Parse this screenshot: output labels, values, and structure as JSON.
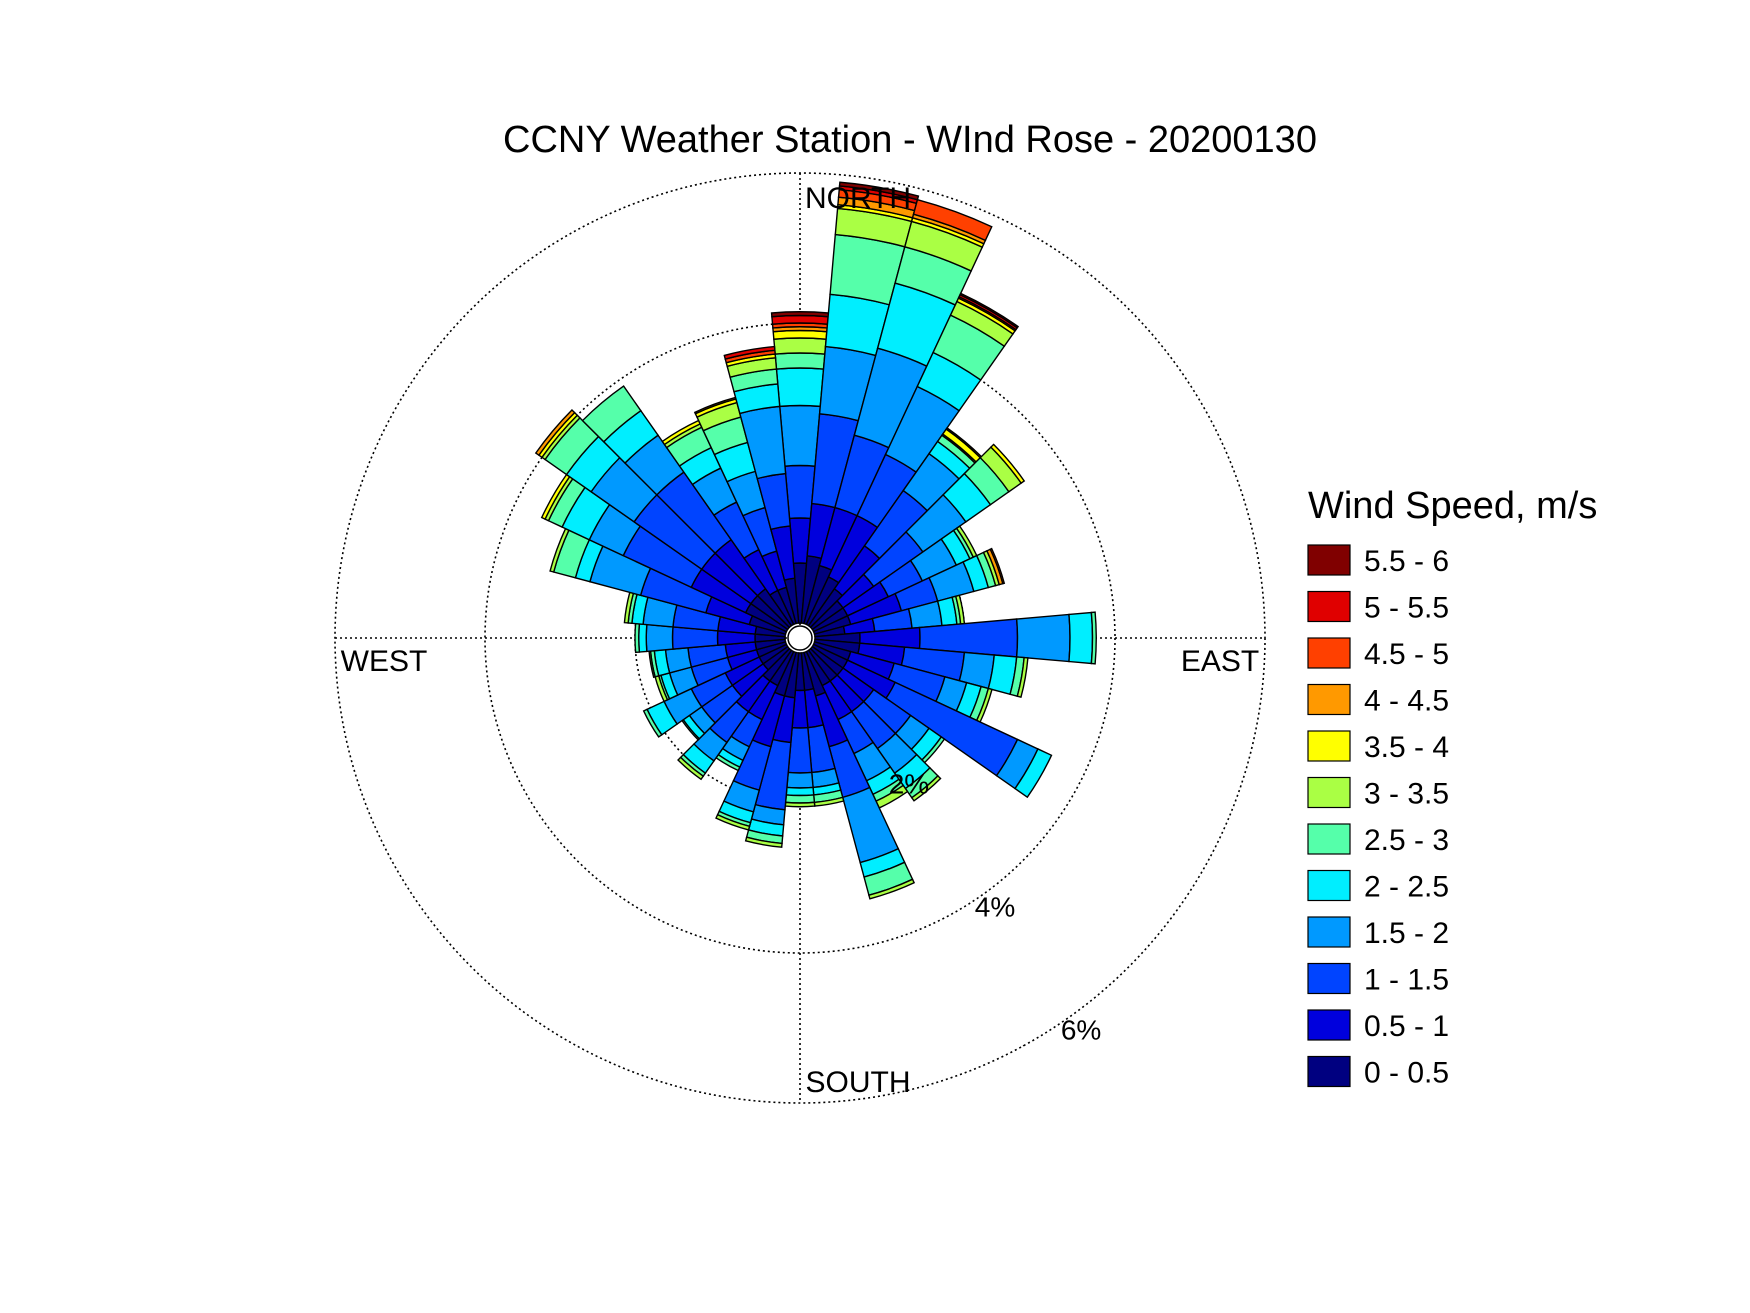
{
  "chart_data": {
    "type": "wind-rose",
    "title": "CCNY Weather Station - WInd Rose - 20200130",
    "direction_labels": {
      "north": "NORTH",
      "east": "EAST",
      "south": "SOUTH",
      "west": "WEST"
    },
    "radial_ticks": [
      {
        "value": 2,
        "label": "2%"
      },
      {
        "value": 4,
        "label": "4%"
      },
      {
        "value": 6,
        "label": "6%"
      }
    ],
    "r_max": 6,
    "grid": true,
    "sector_count": 36,
    "sector_width_deg": 10,
    "legend": {
      "title": "Wind Speed, m/s",
      "placement": "right",
      "bins": [
        {
          "label": "5.5 - 6",
          "color": "#800000"
        },
        {
          "label": "5 - 5.5",
          "color": "#e00000"
        },
        {
          "label": "4.5 - 5",
          "color": "#ff4000"
        },
        {
          "label": "4 - 4.5",
          "color": "#ff9900"
        },
        {
          "label": "3.5 - 4",
          "color": "#ffff00"
        },
        {
          "label": "3 - 3.5",
          "color": "#aaff44"
        },
        {
          "label": "2.5 - 3",
          "color": "#55ffaa"
        },
        {
          "label": "2 - 2.5",
          "color": "#00eeff"
        },
        {
          "label": "1.5 - 2",
          "color": "#0099ff"
        },
        {
          "label": "1 - 1.5",
          "color": "#0044ff"
        },
        {
          "label": "0.5 - 1",
          "color": "#0000dd"
        },
        {
          "label": "0 - 0.5",
          "color": "#000080"
        }
      ]
    },
    "sectors": [
      {
        "direction_deg": 0,
        "cumulative_pct": [
          0.8,
          1.4,
          2.1,
          2.9,
          3.4,
          3.6,
          3.8,
          3.9,
          3.95,
          4.0,
          4.1,
          4.15
        ]
      },
      {
        "direction_deg": 10,
        "cumulative_pct": [
          0.9,
          1.6,
          2.8,
          3.7,
          4.4,
          5.2,
          5.55,
          5.6,
          5.7,
          5.8,
          5.85,
          5.9
        ]
      },
      {
        "direction_deg": 20,
        "cumulative_pct": [
          0.8,
          1.6,
          2.6,
          3.8,
          4.7,
          5.2,
          5.55,
          5.6,
          5.65,
          5.85,
          5.85,
          5.85
        ]
      },
      {
        "direction_deg": 30,
        "cumulative_pct": [
          0.7,
          1.6,
          2.5,
          3.5,
          4.0,
          4.55,
          4.75,
          4.8,
          4.8,
          4.82,
          4.85,
          4.87
        ]
      },
      {
        "direction_deg": 40,
        "cumulative_pct": [
          0.6,
          1.3,
          2.2,
          2.8,
          3.0,
          3.1,
          3.12,
          3.2,
          3.22,
          3.22,
          3.22,
          3.22
        ]
      },
      {
        "direction_deg": 50,
        "cumulative_pct": [
          0.5,
          1.0,
          1.8,
          2.5,
          2.9,
          3.2,
          3.4,
          3.45,
          3.45,
          3.45,
          3.45,
          3.45
        ]
      },
      {
        "direction_deg": 60,
        "cumulative_pct": [
          0.5,
          1.1,
          1.6,
          2.1,
          2.3,
          2.35,
          2.4,
          2.4,
          2.4,
          2.4,
          2.4,
          2.4
        ]
      },
      {
        "direction_deg": 70,
        "cumulative_pct": [
          0.5,
          1.2,
          1.7,
          2.2,
          2.4,
          2.5,
          2.55,
          2.55,
          2.6,
          2.62,
          2.62,
          2.62
        ]
      },
      {
        "direction_deg": 80,
        "cumulative_pct": [
          0.4,
          0.8,
          1.3,
          1.7,
          1.9,
          1.95,
          2.0,
          2.0,
          2.0,
          2.0,
          2.0,
          2.0
        ]
      },
      {
        "direction_deg": 90,
        "cumulative_pct": [
          0.6,
          1.4,
          2.7,
          3.4,
          3.7,
          3.75,
          3.75,
          3.75,
          3.75,
          3.75,
          3.75,
          3.75
        ]
      },
      {
        "direction_deg": 100,
        "cumulative_pct": [
          0.6,
          1.2,
          2.0,
          2.4,
          2.7,
          2.8,
          2.85,
          2.85,
          2.85,
          2.85,
          2.85,
          2.85
        ]
      },
      {
        "direction_deg": 110,
        "cumulative_pct": [
          0.5,
          1.1,
          1.8,
          2.1,
          2.3,
          2.4,
          2.45,
          2.45,
          2.45,
          2.45,
          2.45,
          2.45
        ]
      },
      {
        "direction_deg": 120,
        "cumulative_pct": [
          0.5,
          1.2,
          3.0,
          3.3,
          3.5,
          3.5,
          3.5,
          3.5,
          3.5,
          3.5,
          3.5,
          3.5
        ]
      },
      {
        "direction_deg": 130,
        "cumulative_pct": [
          0.5,
          1.0,
          1.6,
          1.9,
          2.1,
          2.15,
          2.15,
          2.15,
          2.15,
          2.15,
          2.15,
          2.15
        ]
      },
      {
        "direction_deg": 140,
        "cumulative_pct": [
          0.5,
          1.0,
          1.6,
          2.0,
          2.25,
          2.4,
          2.45,
          2.45,
          2.45,
          2.45,
          2.45,
          2.45
        ]
      },
      {
        "direction_deg": 150,
        "cumulative_pct": [
          0.5,
          1.0,
          1.5,
          1.9,
          2.1,
          2.2,
          2.3,
          2.3,
          2.3,
          2.3,
          2.3,
          2.3
        ]
      },
      {
        "direction_deg": 160,
        "cumulative_pct": [
          0.6,
          1.3,
          2.0,
          2.9,
          3.1,
          3.35,
          3.4,
          3.4,
          3.4,
          3.4,
          3.4,
          3.4
        ]
      },
      {
        "direction_deg": 170,
        "cumulative_pct": [
          0.5,
          1.0,
          1.6,
          1.8,
          1.9,
          2.0,
          2.05,
          2.05,
          2.05,
          2.05,
          2.05,
          2.05
        ]
      },
      {
        "direction_deg": 180,
        "cumulative_pct": [
          0.5,
          1.0,
          1.6,
          1.8,
          1.9,
          2.0,
          2.05,
          2.05,
          2.05,
          2.05,
          2.05,
          2.05
        ]
      },
      {
        "direction_deg": 190,
        "cumulative_pct": [
          0.6,
          1.2,
          2.1,
          2.3,
          2.45,
          2.55,
          2.6,
          2.6,
          2.6,
          2.6,
          2.6,
          2.6
        ]
      },
      {
        "direction_deg": 200,
        "cumulative_pct": [
          0.6,
          1.3,
          1.9,
          2.2,
          2.35,
          2.4,
          2.45,
          2.45,
          2.45,
          2.45,
          2.45,
          2.45
        ]
      },
      {
        "direction_deg": 210,
        "cumulative_pct": [
          0.5,
          1.0,
          1.4,
          1.6,
          1.7,
          1.75,
          1.75,
          1.75,
          1.75,
          1.75,
          1.75,
          1.75
        ]
      },
      {
        "direction_deg": 220,
        "cumulative_pct": [
          0.5,
          1.0,
          1.5,
          1.8,
          2.0,
          2.05,
          2.1,
          2.1,
          2.1,
          2.1,
          2.1,
          2.1
        ]
      },
      {
        "direction_deg": 230,
        "cumulative_pct": [
          0.4,
          0.9,
          1.4,
          1.6,
          1.7,
          1.72,
          1.72,
          1.72,
          1.72,
          1.72,
          1.72,
          1.72
        ]
      },
      {
        "direction_deg": 240,
        "cumulative_pct": [
          0.4,
          0.9,
          1.4,
          1.8,
          2.05,
          2.1,
          2.1,
          2.1,
          2.1,
          2.1,
          2.1,
          2.1
        ]
      },
      {
        "direction_deg": 250,
        "cumulative_pct": [
          0.4,
          0.8,
          1.3,
          1.6,
          1.72,
          1.75,
          1.8,
          1.8,
          1.8,
          1.8,
          1.8,
          1.8
        ]
      },
      {
        "direction_deg": 260,
        "cumulative_pct": [
          0.4,
          0.8,
          1.3,
          1.6,
          1.75,
          1.8,
          1.82,
          1.82,
          1.82,
          1.82,
          1.82,
          1.82
        ]
      },
      {
        "direction_deg": 270,
        "cumulative_pct": [
          0.4,
          0.9,
          1.5,
          1.85,
          1.95,
          2.0,
          2.0,
          2.0,
          2.0,
          2.0,
          2.0,
          2.0
        ]
      },
      {
        "direction_deg": 280,
        "cumulative_pct": [
          0.4,
          0.9,
          1.5,
          1.9,
          2.05,
          2.1,
          2.15,
          2.15,
          2.15,
          2.15,
          2.15,
          2.15
        ]
      },
      {
        "direction_deg": 290,
        "cumulative_pct": [
          0.5,
          1.1,
          2.0,
          2.7,
          2.9,
          3.2,
          3.25,
          3.25,
          3.25,
          3.25,
          3.25,
          3.25
        ]
      },
      {
        "direction_deg": 300,
        "cumulative_pct": [
          0.6,
          1.4,
          2.4,
          2.9,
          3.3,
          3.5,
          3.55,
          3.6,
          3.6,
          3.6,
          3.6,
          3.6
        ]
      },
      {
        "direction_deg": 310,
        "cumulative_pct": [
          0.6,
          1.4,
          2.5,
          3.2,
          3.6,
          3.95,
          4.0,
          4.05,
          4.1,
          4.1,
          4.1,
          4.1
        ]
      },
      {
        "direction_deg": 320,
        "cumulative_pct": [
          0.6,
          1.4,
          2.5,
          3.1,
          3.5,
          3.9,
          3.9,
          3.9,
          3.9,
          3.9,
          3.9,
          3.9
        ]
      },
      {
        "direction_deg": 330,
        "cumulative_pct": [
          0.5,
          1.1,
          1.8,
          2.3,
          2.6,
          2.9,
          2.95,
          3.0,
          3.0,
          3.0,
          3.0,
          3.0
        ]
      },
      {
        "direction_deg": 340,
        "cumulative_pct": [
          0.5,
          1.0,
          1.6,
          2.1,
          2.5,
          2.85,
          3.05,
          3.1,
          3.12,
          3.12,
          3.12,
          3.12
        ]
      },
      {
        "direction_deg": 350,
        "cumulative_pct": [
          0.6,
          1.3,
          2.0,
          2.9,
          3.2,
          3.4,
          3.55,
          3.6,
          3.6,
          3.65,
          3.7,
          3.7
        ]
      }
    ]
  }
}
